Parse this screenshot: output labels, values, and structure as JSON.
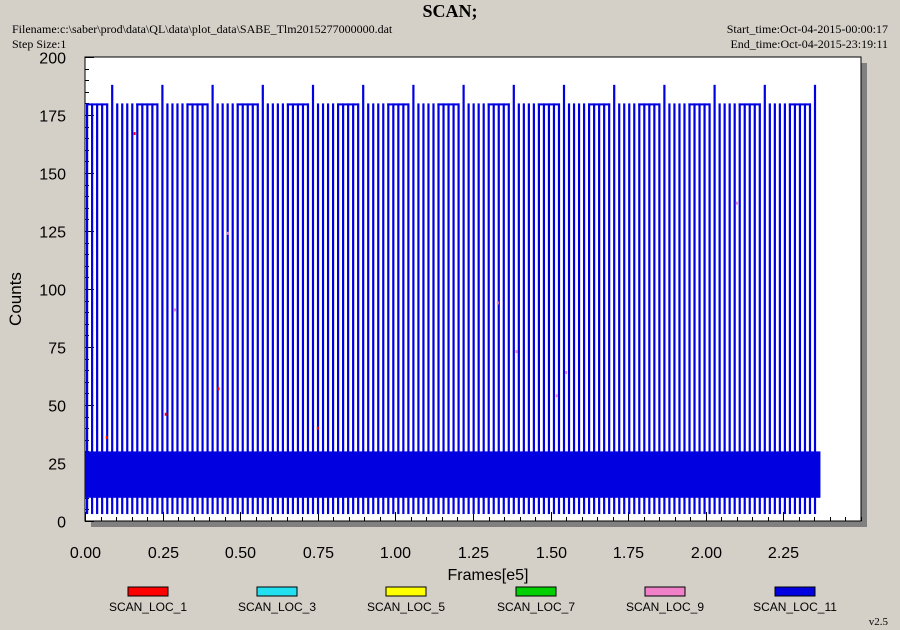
{
  "header": {
    "title": "SCAN;",
    "filename": "Filename:c:\\saber\\prod\\data\\QL\\data\\plot_data\\SABE_Tlm2015277000000.dat",
    "step_size": "Step Size:1",
    "start_time": "Start_time:Oct-04-2015-00:00:17",
    "end_time": "End_time:Oct-04-2015-23:19:11"
  },
  "version": "v2.5",
  "colors": {
    "SCAN_LOC_1": "#ff0000",
    "SCAN_LOC_3": "#22e0f0",
    "SCAN_LOC_5": "#ffff00",
    "SCAN_LOC_7": "#00d000",
    "SCAN_LOC_9": "#f080c8",
    "SCAN_LOC_11": "#0000e0"
  },
  "chart_data": {
    "type": "line",
    "title": "SCAN;",
    "xlabel": "Frames[e5]",
    "ylabel": "Counts",
    "xlim": [
      0,
      2.5
    ],
    "ylim": [
      0,
      200
    ],
    "xticks": [
      "0.00",
      "0.25",
      "0.50",
      "0.75",
      "1.00",
      "1.25",
      "1.50",
      "1.75",
      "2.00",
      "2.25"
    ],
    "yticks": [
      "0",
      "25",
      "50",
      "75",
      "100",
      "125",
      "150",
      "175",
      "200"
    ],
    "legend_position": "bottom",
    "series": [
      {
        "name": "SCAN_LOC_1",
        "color": "#ff0000",
        "points": [
          [
            0.07,
            36
          ],
          [
            0.16,
            167
          ],
          [
            0.26,
            46
          ],
          [
            0.43,
            57
          ],
          [
            0.75,
            40
          ]
        ]
      },
      {
        "name": "SCAN_LOC_3",
        "color": "#22e0f0",
        "points": []
      },
      {
        "name": "SCAN_LOC_5",
        "color": "#ffff00",
        "points": []
      },
      {
        "name": "SCAN_LOC_7",
        "color": "#00d000",
        "points": []
      },
      {
        "name": "SCAN_LOC_9",
        "color": "#f080c8",
        "points": [
          [
            0.29,
            91
          ],
          [
            0.46,
            124
          ],
          [
            1.33,
            94
          ],
          [
            1.39,
            73
          ],
          [
            1.52,
            54
          ],
          [
            1.55,
            64
          ],
          [
            2.1,
            137
          ]
        ]
      },
      {
        "name": "SCAN_LOC_11",
        "color": "#0000e0",
        "x_range": [
          0.0,
          2.35
        ],
        "baseline_band": [
          10,
          30
        ],
        "peak_level": 180,
        "peak_level_high": 188,
        "min_level": 3
      }
    ]
  }
}
